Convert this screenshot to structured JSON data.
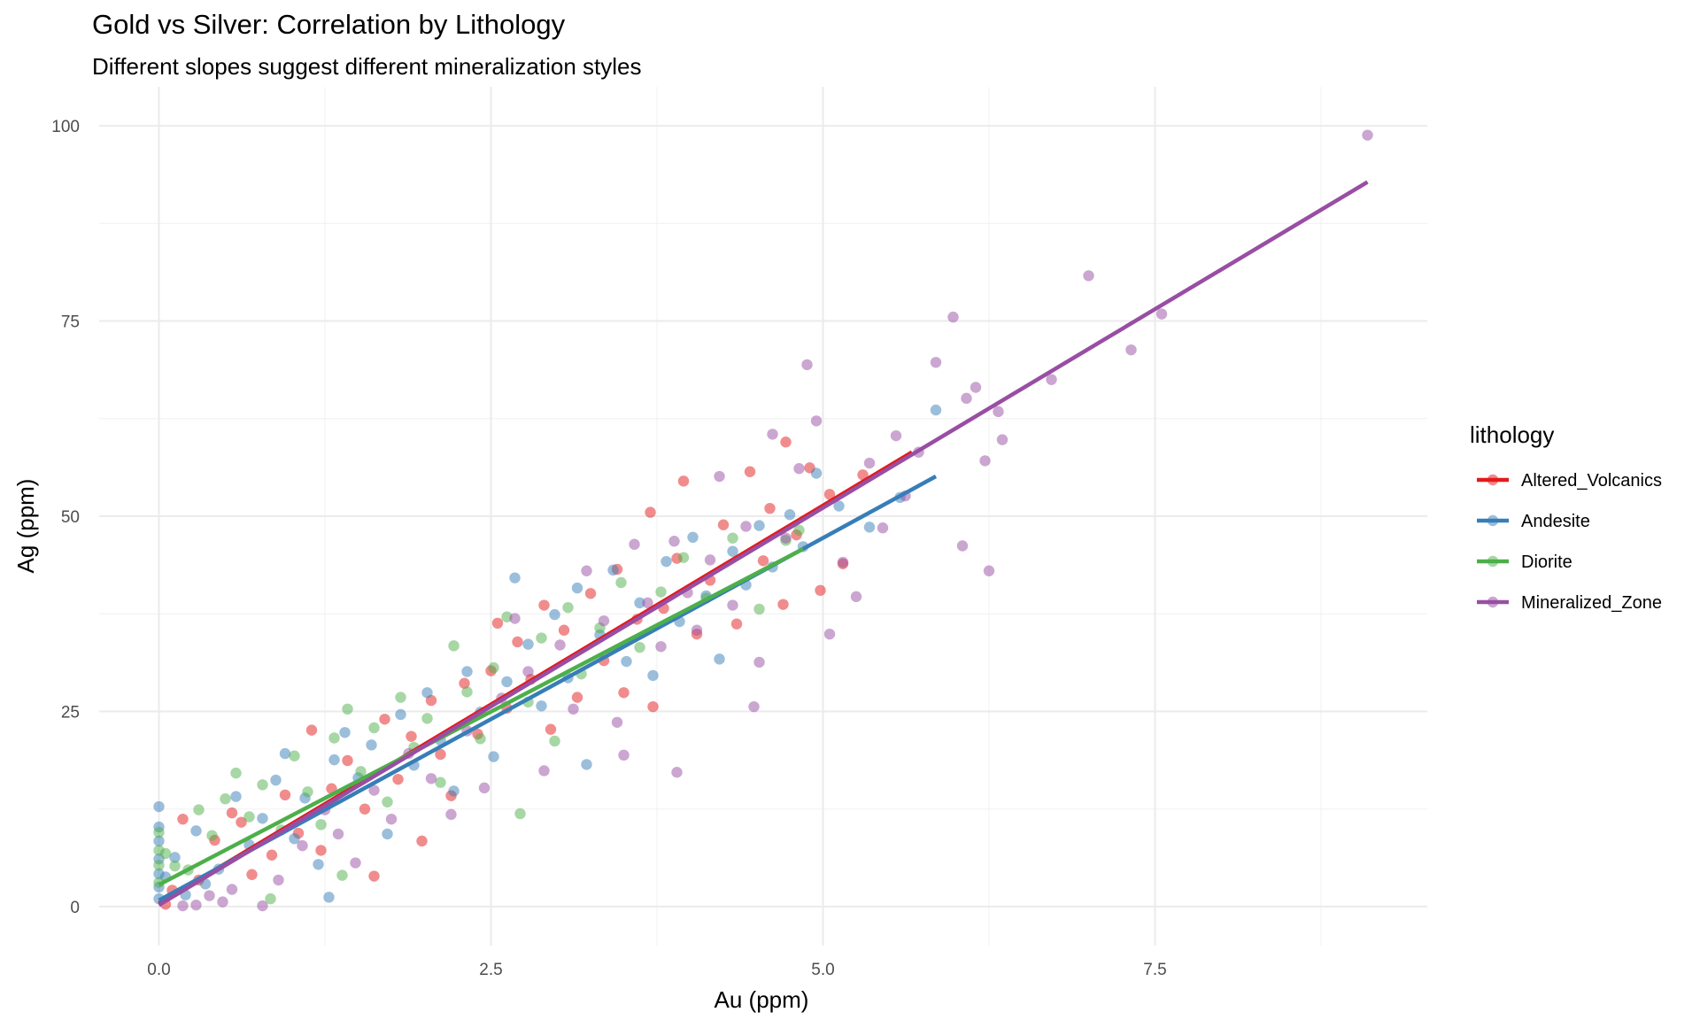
{
  "chart_data": {
    "type": "scatter",
    "title": "Gold vs Silver: Correlation by Lithology",
    "subtitle": "Different slopes suggest different mineralization styles",
    "xlabel": "Au (ppm)",
    "ylabel": "Ag (ppm)",
    "xlim": [
      -0.45,
      9.55
    ],
    "ylim": [
      -5,
      105
    ],
    "x_ticks": [
      0.0,
      2.5,
      5.0,
      7.5
    ],
    "x_tick_labels": [
      "0.0",
      "2.5",
      "5.0",
      "7.5"
    ],
    "y_ticks": [
      0,
      25,
      50,
      75,
      100
    ],
    "y_tick_labels": [
      "0",
      "25",
      "50",
      "75",
      "100"
    ],
    "grid": true,
    "legend": {
      "title": "lithology",
      "position": "right"
    },
    "series": [
      {
        "name": "Altered_Volcanics",
        "color": "#e41a1c",
        "fit_line": {
          "x": [
            0.0,
            5.67
          ],
          "y": [
            0.4,
            58.2
          ]
        },
        "points": [
          [
            0.05,
            0.3
          ],
          [
            0.1,
            2.1
          ],
          [
            0.18,
            11.2
          ],
          [
            0.3,
            3.4
          ],
          [
            0.42,
            8.5
          ],
          [
            0.55,
            12.0
          ],
          [
            0.62,
            10.8
          ],
          [
            0.7,
            4.1
          ],
          [
            0.85,
            6.6
          ],
          [
            0.95,
            14.3
          ],
          [
            1.05,
            9.4
          ],
          [
            1.15,
            22.6
          ],
          [
            1.22,
            7.2
          ],
          [
            1.3,
            15.1
          ],
          [
            1.42,
            18.7
          ],
          [
            1.55,
            12.5
          ],
          [
            1.62,
            3.9
          ],
          [
            1.7,
            24.0
          ],
          [
            1.8,
            16.3
          ],
          [
            1.9,
            21.8
          ],
          [
            1.98,
            8.4
          ],
          [
            2.05,
            26.4
          ],
          [
            2.12,
            19.5
          ],
          [
            2.2,
            14.2
          ],
          [
            2.3,
            28.6
          ],
          [
            2.4,
            22.1
          ],
          [
            2.5,
            30.2
          ],
          [
            2.55,
            36.3
          ],
          [
            2.62,
            25.4
          ],
          [
            2.7,
            33.9
          ],
          [
            2.8,
            29.1
          ],
          [
            2.9,
            38.6
          ],
          [
            2.95,
            22.7
          ],
          [
            3.05,
            35.4
          ],
          [
            3.15,
            26.8
          ],
          [
            3.25,
            40.1
          ],
          [
            3.35,
            31.5
          ],
          [
            3.45,
            43.2
          ],
          [
            3.5,
            27.4
          ],
          [
            3.6,
            36.8
          ],
          [
            3.7,
            50.5
          ],
          [
            3.72,
            25.6
          ],
          [
            3.8,
            38.2
          ],
          [
            3.9,
            44.6
          ],
          [
            3.95,
            54.5
          ],
          [
            4.05,
            34.9
          ],
          [
            4.15,
            41.8
          ],
          [
            4.25,
            48.9
          ],
          [
            4.35,
            36.2
          ],
          [
            4.45,
            55.7
          ],
          [
            4.55,
            44.3
          ],
          [
            4.6,
            51.0
          ],
          [
            4.7,
            38.7
          ],
          [
            4.72,
            59.5
          ],
          [
            4.8,
            47.6
          ],
          [
            4.9,
            56.2
          ],
          [
            4.98,
            40.5
          ],
          [
            5.05,
            52.8
          ],
          [
            5.15,
            43.9
          ],
          [
            5.3,
            55.3
          ]
        ]
      },
      {
        "name": "Andesite",
        "color": "#377eb8",
        "fit_line": {
          "x": [
            0.0,
            5.85
          ],
          "y": [
            0.8,
            55.1
          ]
        },
        "points": [
          [
            0.0,
            12.8
          ],
          [
            0.0,
            10.2
          ],
          [
            0.0,
            8.4
          ],
          [
            0.0,
            6.1
          ],
          [
            0.0,
            4.2
          ],
          [
            0.0,
            2.5
          ],
          [
            0.0,
            1.0
          ],
          [
            0.05,
            3.8
          ],
          [
            0.12,
            6.3
          ],
          [
            0.2,
            1.5
          ],
          [
            0.28,
            9.7
          ],
          [
            0.35,
            2.9
          ],
          [
            0.45,
            4.8
          ],
          [
            0.58,
            14.1
          ],
          [
            0.68,
            7.9
          ],
          [
            0.78,
            11.3
          ],
          [
            0.88,
            16.2
          ],
          [
            0.95,
            19.6
          ],
          [
            1.02,
            8.7
          ],
          [
            1.1,
            13.9
          ],
          [
            1.2,
            5.4
          ],
          [
            1.28,
            1.2
          ],
          [
            1.32,
            18.8
          ],
          [
            1.4,
            22.3
          ],
          [
            1.5,
            16.5
          ],
          [
            1.6,
            20.7
          ],
          [
            1.72,
            9.3
          ],
          [
            1.82,
            24.6
          ],
          [
            1.92,
            18.1
          ],
          [
            2.02,
            27.4
          ],
          [
            2.12,
            21.3
          ],
          [
            2.22,
            14.8
          ],
          [
            2.32,
            30.1
          ],
          [
            2.42,
            24.9
          ],
          [
            2.52,
            19.2
          ],
          [
            2.62,
            28.8
          ],
          [
            2.68,
            42.1
          ],
          [
            2.78,
            33.6
          ],
          [
            2.88,
            25.7
          ],
          [
            2.98,
            37.4
          ],
          [
            3.08,
            29.3
          ],
          [
            3.15,
            40.8
          ],
          [
            3.22,
            18.2
          ],
          [
            3.32,
            34.8
          ],
          [
            3.42,
            43.1
          ],
          [
            3.52,
            31.4
          ],
          [
            3.62,
            38.9
          ],
          [
            3.72,
            29.6
          ],
          [
            3.82,
            44.2
          ],
          [
            3.92,
            36.5
          ],
          [
            4.02,
            47.3
          ],
          [
            4.12,
            39.8
          ],
          [
            4.22,
            31.7
          ],
          [
            4.32,
            45.5
          ],
          [
            4.42,
            41.2
          ],
          [
            4.52,
            48.8
          ],
          [
            4.62,
            43.5
          ],
          [
            4.75,
            50.2
          ],
          [
            4.85,
            46.1
          ],
          [
            4.95,
            55.5
          ],
          [
            5.12,
            51.3
          ],
          [
            5.35,
            48.6
          ],
          [
            5.58,
            52.4
          ],
          [
            5.85,
            63.6
          ]
        ]
      },
      {
        "name": "Diorite",
        "color": "#4daf4a",
        "fit_line": {
          "x": [
            0.0,
            4.85
          ],
          "y": [
            2.8,
            45.8
          ]
        },
        "points": [
          [
            0.0,
            9.5
          ],
          [
            0.0,
            7.2
          ],
          [
            0.0,
            5.3
          ],
          [
            0.0,
            3.1
          ],
          [
            0.05,
            6.8
          ],
          [
            0.12,
            5.2
          ],
          [
            0.22,
            4.7
          ],
          [
            0.3,
            12.4
          ],
          [
            0.4,
            9.1
          ],
          [
            0.5,
            13.8
          ],
          [
            0.58,
            17.1
          ],
          [
            0.68,
            11.5
          ],
          [
            0.78,
            15.6
          ],
          [
            0.84,
            1.0
          ],
          [
            0.92,
            9.8
          ],
          [
            1.02,
            19.3
          ],
          [
            1.12,
            14.7
          ],
          [
            1.22,
            10.5
          ],
          [
            1.32,
            21.6
          ],
          [
            1.38,
            4.0
          ],
          [
            1.42,
            25.3
          ],
          [
            1.52,
            17.3
          ],
          [
            1.62,
            22.9
          ],
          [
            1.72,
            13.4
          ],
          [
            1.82,
            26.8
          ],
          [
            1.92,
            20.4
          ],
          [
            2.02,
            24.1
          ],
          [
            2.12,
            15.9
          ],
          [
            2.22,
            33.4
          ],
          [
            2.32,
            27.5
          ],
          [
            2.42,
            21.5
          ],
          [
            2.52,
            30.6
          ],
          [
            2.62,
            37.1
          ],
          [
            2.72,
            11.9
          ],
          [
            2.78,
            26.2
          ],
          [
            2.88,
            34.4
          ],
          [
            2.98,
            21.2
          ],
          [
            3.08,
            38.3
          ],
          [
            3.18,
            29.8
          ],
          [
            3.32,
            35.7
          ],
          [
            3.48,
            41.5
          ],
          [
            3.62,
            33.2
          ],
          [
            3.78,
            40.3
          ],
          [
            3.95,
            44.7
          ],
          [
            4.12,
            39.5
          ],
          [
            4.32,
            47.2
          ],
          [
            4.52,
            38.1
          ],
          [
            4.72,
            46.9
          ],
          [
            4.82,
            48.2
          ]
        ]
      },
      {
        "name": "Mineralized_Zone",
        "color": "#984ea3",
        "fit_line": {
          "x": [
            0.0,
            9.1
          ],
          "y": [
            0.2,
            92.8
          ]
        },
        "points": [
          [
            0.18,
            0.1
          ],
          [
            0.28,
            0.2
          ],
          [
            0.38,
            1.4
          ],
          [
            0.48,
            0.6
          ],
          [
            0.55,
            2.2
          ],
          [
            0.78,
            0.1
          ],
          [
            0.9,
            3.4
          ],
          [
            1.08,
            7.8
          ],
          [
            1.25,
            12.4
          ],
          [
            1.35,
            9.3
          ],
          [
            1.48,
            5.6
          ],
          [
            1.62,
            14.9
          ],
          [
            1.75,
            11.2
          ],
          [
            1.88,
            19.6
          ],
          [
            2.05,
            16.4
          ],
          [
            2.2,
            11.8
          ],
          [
            2.32,
            22.5
          ],
          [
            2.45,
            15.2
          ],
          [
            2.58,
            26.7
          ],
          [
            2.68,
            36.9
          ],
          [
            2.78,
            30.1
          ],
          [
            2.9,
            17.4
          ],
          [
            3.02,
            33.5
          ],
          [
            3.12,
            25.3
          ],
          [
            3.22,
            43.0
          ],
          [
            3.35,
            36.6
          ],
          [
            3.45,
            23.6
          ],
          [
            3.5,
            19.4
          ],
          [
            3.58,
            46.4
          ],
          [
            3.68,
            38.9
          ],
          [
            3.78,
            33.3
          ],
          [
            3.88,
            46.8
          ],
          [
            3.9,
            17.2
          ],
          [
            3.98,
            40.2
          ],
          [
            4.05,
            35.4
          ],
          [
            4.15,
            44.4
          ],
          [
            4.22,
            55.1
          ],
          [
            4.32,
            38.6
          ],
          [
            4.42,
            48.7
          ],
          [
            4.48,
            25.6
          ],
          [
            4.52,
            31.3
          ],
          [
            4.62,
            60.5
          ],
          [
            4.72,
            47.2
          ],
          [
            4.82,
            56.1
          ],
          [
            4.88,
            69.4
          ],
          [
            4.95,
            62.2
          ],
          [
            5.05,
            34.9
          ],
          [
            5.15,
            44.1
          ],
          [
            5.25,
            39.7
          ],
          [
            5.35,
            56.8
          ],
          [
            5.45,
            48.5
          ],
          [
            5.55,
            60.3
          ],
          [
            5.62,
            52.6
          ],
          [
            5.72,
            58.2
          ],
          [
            5.85,
            69.7
          ],
          [
            5.98,
            75.5
          ],
          [
            6.05,
            46.2
          ],
          [
            6.08,
            65.1
          ],
          [
            6.15,
            66.5
          ],
          [
            6.22,
            57.1
          ],
          [
            6.25,
            43.0
          ],
          [
            6.32,
            63.4
          ],
          [
            6.35,
            59.8
          ],
          [
            6.72,
            67.5
          ],
          [
            7.0,
            80.8
          ],
          [
            7.32,
            71.3
          ],
          [
            7.55,
            75.9
          ],
          [
            9.1,
            98.8
          ]
        ]
      }
    ]
  }
}
